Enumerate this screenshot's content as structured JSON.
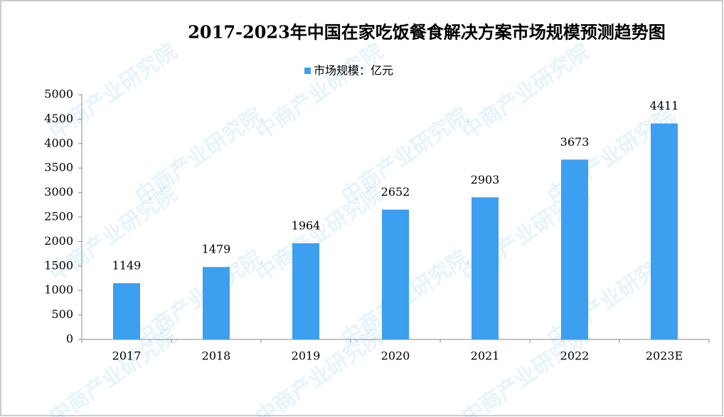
{
  "chart_data": {
    "type": "bar",
    "title": "2017-2023年中国在家吃饭餐食解决方案市场规模预测趋势图",
    "watermark": "中商产业研究院",
    "categories": [
      "2017",
      "2018",
      "2019",
      "2020",
      "2021",
      "2022",
      "2023E"
    ],
    "series": [
      {
        "name": "市场规模：亿元",
        "color": "#3c9ff0",
        "values": [
          1149,
          1479,
          1964,
          2652,
          2903,
          3673,
          4411
        ]
      }
    ],
    "ylim": [
      0,
      5000
    ],
    "yticks": [
      0,
      500,
      1000,
      1500,
      2000,
      2500,
      3000,
      3500,
      4000,
      4500,
      5000
    ],
    "grid": false,
    "legend": "top"
  }
}
